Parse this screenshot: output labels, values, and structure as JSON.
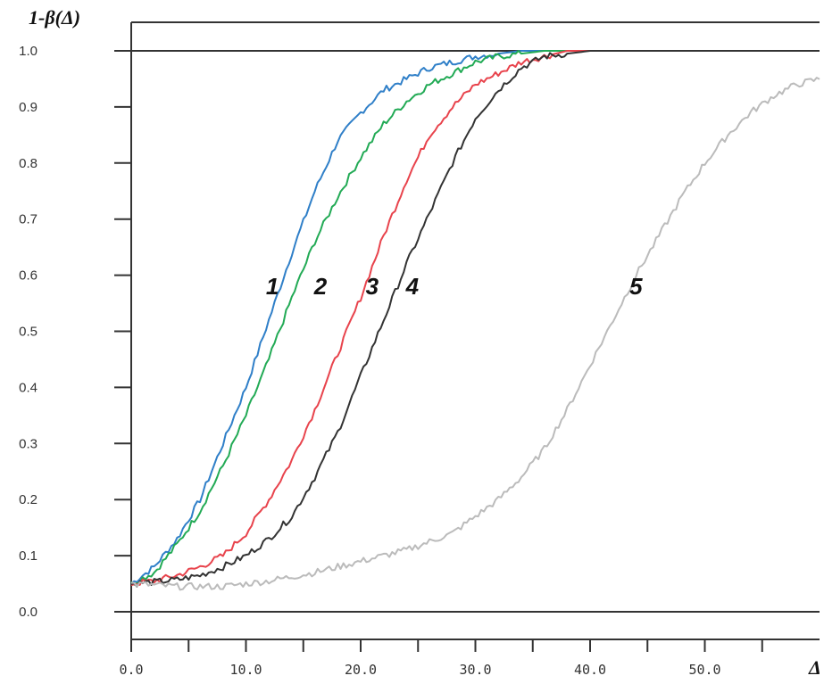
{
  "chart_data": {
    "type": "line",
    "title": "",
    "ylabel": "1-β(Δ)",
    "xlabel": "Δ",
    "xlim": [
      0,
      60
    ],
    "ylim": [
      0,
      1
    ],
    "grid": false,
    "x_ticks": [
      0,
      5,
      10,
      15,
      20,
      25,
      30,
      35,
      40,
      45,
      50,
      55
    ],
    "x_tick_labels": [
      {
        "value": 0,
        "label": "0.0"
      },
      {
        "value": 10,
        "label": "10.0"
      },
      {
        "value": 20,
        "label": "20.0"
      },
      {
        "value": 30,
        "label": "30.0"
      },
      {
        "value": 40,
        "label": "40.0"
      },
      {
        "value": 50,
        "label": "50.0"
      }
    ],
    "y_ticks": [
      0.0,
      0.1,
      0.2,
      0.3,
      0.4,
      0.5,
      0.6,
      0.7,
      0.8,
      0.9,
      1.0
    ],
    "y_tick_labels": [
      "0.0",
      "0.1",
      "0.2",
      "0.3",
      "0.4",
      "0.5",
      "0.6",
      "0.7",
      "0.8",
      "0.9",
      "1.0"
    ],
    "series": [
      {
        "label": "1",
        "color": "#2f7fc8",
        "label_at": [
          12.3,
          0.58
        ],
        "x": [
          0,
          2,
          4,
          6,
          8,
          10,
          12,
          14,
          16,
          18,
          20,
          22,
          24,
          26,
          28,
          30,
          32,
          34,
          36,
          38,
          40
        ],
        "y": [
          0.05,
          0.08,
          0.13,
          0.2,
          0.3,
          0.4,
          0.52,
          0.64,
          0.75,
          0.84,
          0.89,
          0.93,
          0.95,
          0.97,
          0.98,
          0.99,
          0.995,
          1.0,
          1.0,
          1.0,
          1.0
        ]
      },
      {
        "label": "2",
        "color": "#22aa55",
        "label_at": [
          16.5,
          0.58
        ],
        "x": [
          0,
          2,
          4,
          6,
          8,
          10,
          12,
          14,
          16,
          18,
          20,
          22,
          24,
          26,
          28,
          30,
          32,
          34,
          36,
          38,
          40
        ],
        "y": [
          0.05,
          0.07,
          0.12,
          0.18,
          0.26,
          0.35,
          0.45,
          0.56,
          0.66,
          0.74,
          0.81,
          0.87,
          0.91,
          0.94,
          0.96,
          0.98,
          0.99,
          0.995,
          1.0,
          1.0,
          1.0
        ]
      },
      {
        "label": "3",
        "color": "#e8434c",
        "label_at": [
          21.0,
          0.58
        ],
        "x": [
          0,
          2,
          4,
          6,
          8,
          10,
          12,
          14,
          16,
          18,
          20,
          22,
          24,
          26,
          28,
          30,
          32,
          34,
          36,
          38,
          40
        ],
        "y": [
          0.05,
          0.055,
          0.065,
          0.08,
          0.1,
          0.14,
          0.2,
          0.27,
          0.36,
          0.46,
          0.56,
          0.67,
          0.77,
          0.85,
          0.9,
          0.94,
          0.96,
          0.98,
          0.99,
          1.0,
          1.0
        ]
      },
      {
        "label": "4",
        "color": "#333333",
        "label_at": [
          24.5,
          0.58
        ],
        "x": [
          0,
          2,
          4,
          6,
          8,
          10,
          12,
          14,
          16,
          18,
          20,
          22,
          24,
          26,
          28,
          30,
          32,
          34,
          36,
          38,
          40
        ],
        "y": [
          0.05,
          0.053,
          0.057,
          0.065,
          0.08,
          0.1,
          0.13,
          0.17,
          0.24,
          0.32,
          0.42,
          0.52,
          0.62,
          0.71,
          0.8,
          0.88,
          0.93,
          0.97,
          0.99,
          0.995,
          1.0
        ]
      },
      {
        "label": "5",
        "color": "#bbbbbb",
        "label_at": [
          44.0,
          0.58
        ],
        "x": [
          0,
          4,
          8,
          12,
          16,
          20,
          24,
          28,
          30,
          32,
          34,
          36,
          38,
          40,
          42,
          44,
          46,
          48,
          50,
          52,
          54,
          56,
          58,
          60
        ],
        "y": [
          0.05,
          0.045,
          0.045,
          0.055,
          0.07,
          0.09,
          0.11,
          0.14,
          0.17,
          0.2,
          0.24,
          0.29,
          0.36,
          0.44,
          0.52,
          0.6,
          0.67,
          0.74,
          0.8,
          0.85,
          0.89,
          0.92,
          0.94,
          0.95
        ]
      }
    ]
  }
}
